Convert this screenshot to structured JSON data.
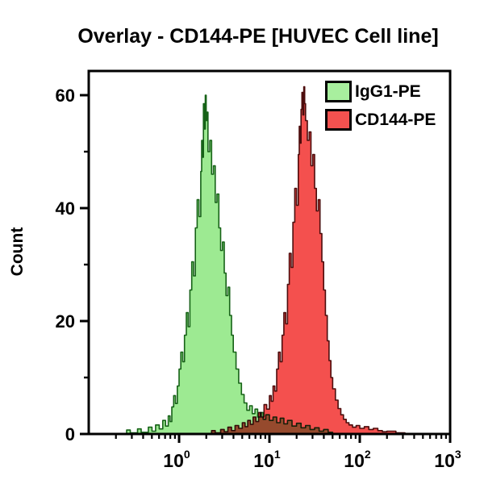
{
  "title": "Overlay - CD144-PE [HUVEC Cell line]",
  "y_axis": {
    "label": "Count",
    "major_ticks": [
      0,
      20,
      40,
      60
    ],
    "minor_ticks": [
      10,
      30,
      50
    ],
    "max_displayed": 64
  },
  "x_axis": {
    "scale": "log10",
    "range_log": [
      -1,
      3
    ],
    "major_tick_labels": [
      {
        "log": 0,
        "base": "10",
        "exp": "0"
      },
      {
        "log": 1,
        "base": "10",
        "exp": "1"
      },
      {
        "log": 2,
        "base": "10",
        "exp": "2"
      },
      {
        "log": 3,
        "base": "10",
        "exp": "3"
      }
    ]
  },
  "legend": [
    {
      "label": "IgG1-PE",
      "color": "#a8ef9e"
    },
    {
      "label": "CD144-PE",
      "color": "#f4514f"
    }
  ],
  "chart_data": {
    "type": "area",
    "subtype": "flow-cytometry-histogram-overlay",
    "title": "Overlay - CD144-PE [HUVEC Cell line]",
    "xlabel": "",
    "ylabel": "Count",
    "x_scale": "log10",
    "x_range": [
      0.1,
      1000
    ],
    "ylim": [
      0,
      64
    ],
    "grid": false,
    "legend_position": "top-right-inside",
    "series": [
      {
        "name": "IgG1-PE",
        "fill": "#9dea92",
        "stroke": "#166217",
        "blend": "normal",
        "peak": {
          "x": 2.0,
          "count": 60
        },
        "points_log10x_count": [
          [
            -1.0,
            0
          ],
          [
            -0.62,
            0
          ],
          [
            -0.58,
            0.7
          ],
          [
            -0.54,
            0.2
          ],
          [
            -0.46,
            0.9
          ],
          [
            -0.42,
            0.3
          ],
          [
            -0.34,
            1.2
          ],
          [
            -0.3,
            0.5
          ],
          [
            -0.26,
            1.6
          ],
          [
            -0.22,
            0.9
          ],
          [
            -0.18,
            2.4
          ],
          [
            -0.15,
            1.4
          ],
          [
            -0.12,
            3.2
          ],
          [
            -0.1,
            2.2
          ],
          [
            -0.08,
            4.8
          ],
          [
            -0.06,
            6.8
          ],
          [
            -0.04,
            5.4
          ],
          [
            -0.02,
            8.5
          ],
          [
            0.0,
            11.5
          ],
          [
            0.02,
            14.5
          ],
          [
            0.04,
            12.8
          ],
          [
            0.06,
            17.5
          ],
          [
            0.08,
            21.5
          ],
          [
            0.1,
            19.0
          ],
          [
            0.12,
            25.5
          ],
          [
            0.14,
            30.5
          ],
          [
            0.16,
            28.0
          ],
          [
            0.18,
            36.5
          ],
          [
            0.2,
            41.5
          ],
          [
            0.22,
            38.5
          ],
          [
            0.24,
            46.5
          ],
          [
            0.25,
            52.0
          ],
          [
            0.26,
            49.0
          ],
          [
            0.27,
            58.5
          ],
          [
            0.28,
            54.0
          ],
          [
            0.29,
            60.0
          ],
          [
            0.3,
            55.5
          ],
          [
            0.31,
            57.0
          ],
          [
            0.32,
            50.0
          ],
          [
            0.34,
            52.0
          ],
          [
            0.36,
            46.0
          ],
          [
            0.38,
            47.5
          ],
          [
            0.4,
            41.0
          ],
          [
            0.42,
            42.5
          ],
          [
            0.44,
            36.5
          ],
          [
            0.46,
            32.5
          ],
          [
            0.48,
            34.0
          ],
          [
            0.5,
            28.5
          ],
          [
            0.52,
            24.5
          ],
          [
            0.54,
            26.0
          ],
          [
            0.56,
            21.0
          ],
          [
            0.58,
            17.5
          ],
          [
            0.6,
            14.5
          ],
          [
            0.63,
            11.5
          ],
          [
            0.66,
            9.0
          ],
          [
            0.69,
            7.0
          ],
          [
            0.72,
            5.5
          ],
          [
            0.75,
            4.2
          ],
          [
            0.78,
            5.0
          ],
          [
            0.81,
            3.6
          ],
          [
            0.84,
            4.4
          ],
          [
            0.87,
            3.0
          ],
          [
            0.9,
            3.8
          ],
          [
            0.93,
            2.6
          ],
          [
            0.96,
            3.4
          ],
          [
            1.0,
            2.4
          ],
          [
            1.04,
            3.0
          ],
          [
            1.08,
            2.0
          ],
          [
            1.12,
            2.8
          ],
          [
            1.16,
            1.8
          ],
          [
            1.2,
            2.4
          ],
          [
            1.25,
            1.4
          ],
          [
            1.3,
            1.9
          ],
          [
            1.35,
            1.1
          ],
          [
            1.4,
            1.5
          ],
          [
            1.45,
            0.8
          ],
          [
            1.5,
            1.1
          ],
          [
            1.55,
            0.5
          ],
          [
            1.6,
            0.8
          ],
          [
            1.65,
            0.3
          ],
          [
            1.7,
            0.1
          ],
          [
            1.8,
            0
          ],
          [
            3.0,
            0
          ]
        ]
      },
      {
        "name": "CD144-PE",
        "fill": "#f4504e",
        "stroke": "#4d0d0d",
        "blend": "multiply",
        "peak": {
          "x": 24,
          "count": 62
        },
        "points_log10x_count": [
          [
            -1.0,
            0
          ],
          [
            0.3,
            0
          ],
          [
            0.36,
            0.6
          ],
          [
            0.4,
            0.2
          ],
          [
            0.46,
            0.8
          ],
          [
            0.5,
            0.4
          ],
          [
            0.54,
            1.2
          ],
          [
            0.58,
            0.6
          ],
          [
            0.62,
            1.5
          ],
          [
            0.66,
            1.0
          ],
          [
            0.7,
            2.0
          ],
          [
            0.73,
            1.3
          ],
          [
            0.76,
            2.4
          ],
          [
            0.79,
            1.7
          ],
          [
            0.82,
            3.0
          ],
          [
            0.85,
            2.2
          ],
          [
            0.88,
            3.8
          ],
          [
            0.91,
            3.0
          ],
          [
            0.94,
            5.2
          ],
          [
            0.97,
            4.4
          ],
          [
            1.0,
            6.8
          ],
          [
            1.02,
            5.8
          ],
          [
            1.04,
            8.5
          ],
          [
            1.06,
            7.6
          ],
          [
            1.08,
            11.5
          ],
          [
            1.1,
            14.5
          ],
          [
            1.12,
            12.8
          ],
          [
            1.14,
            17.5
          ],
          [
            1.16,
            21.5
          ],
          [
            1.18,
            19.5
          ],
          [
            1.2,
            26.5
          ],
          [
            1.22,
            32.0
          ],
          [
            1.24,
            29.5
          ],
          [
            1.26,
            37.5
          ],
          [
            1.28,
            43.5
          ],
          [
            1.3,
            40.5
          ],
          [
            1.32,
            49.5
          ],
          [
            1.33,
            54.5
          ],
          [
            1.34,
            51.5
          ],
          [
            1.35,
            57.5
          ],
          [
            1.36,
            60.5
          ],
          [
            1.37,
            56.5
          ],
          [
            1.38,
            61.5
          ],
          [
            1.39,
            58.5
          ],
          [
            1.4,
            55.5
          ],
          [
            1.42,
            52.0
          ],
          [
            1.44,
            53.5
          ],
          [
            1.46,
            47.5
          ],
          [
            1.48,
            49.5
          ],
          [
            1.5,
            43.5
          ],
          [
            1.52,
            39.5
          ],
          [
            1.54,
            41.5
          ],
          [
            1.56,
            35.5
          ],
          [
            1.58,
            30.5
          ],
          [
            1.6,
            25.5
          ],
          [
            1.62,
            21.0
          ],
          [
            1.64,
            16.5
          ],
          [
            1.66,
            13.0
          ],
          [
            1.68,
            10.0
          ],
          [
            1.7,
            8.0
          ],
          [
            1.73,
            6.0
          ],
          [
            1.76,
            4.5
          ],
          [
            1.79,
            3.4
          ],
          [
            1.82,
            2.6
          ],
          [
            1.85,
            2.0
          ],
          [
            1.88,
            1.6
          ],
          [
            1.92,
            1.2
          ],
          [
            1.96,
            1.5
          ],
          [
            2.0,
            1.0
          ],
          [
            2.05,
            1.3
          ],
          [
            2.1,
            0.8
          ],
          [
            2.15,
            1.0
          ],
          [
            2.2,
            0.6
          ],
          [
            2.25,
            0.4
          ],
          [
            2.3,
            0.5
          ],
          [
            2.4,
            0.2
          ],
          [
            2.5,
            0
          ],
          [
            3.0,
            0
          ]
        ]
      }
    ]
  }
}
